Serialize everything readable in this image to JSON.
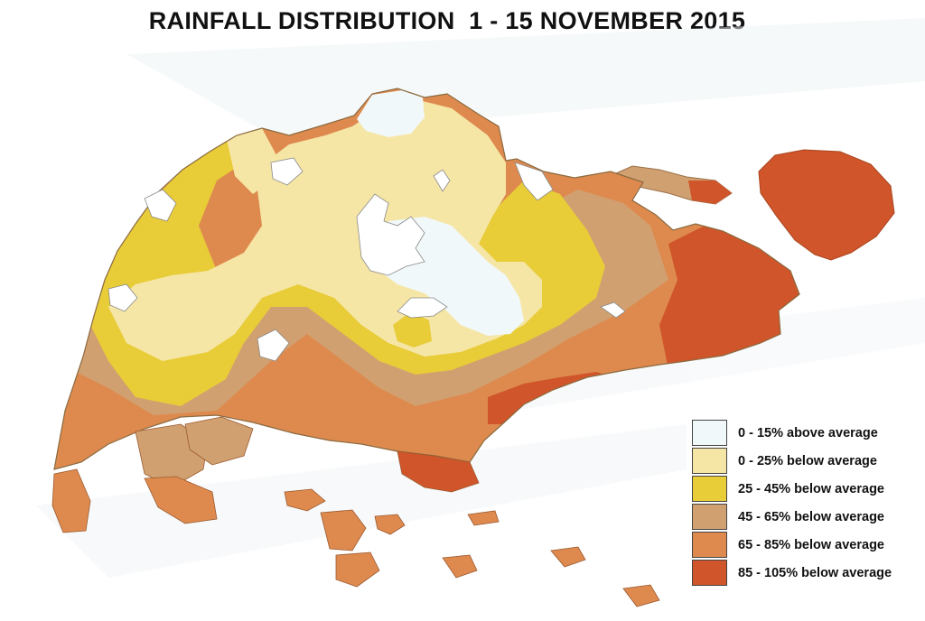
{
  "title": "RAINFALL DISTRIBUTION  1 - 15 NOVEMBER 2015",
  "legend": [
    {
      "label": "0 - 15% above average",
      "color": "#f1f8f9"
    },
    {
      "label": "0 - 25% below average",
      "color": "#f5e6a6"
    },
    {
      "label": "25 - 45% below average",
      "color": "#e8cc38"
    },
    {
      "label": "45 - 65% below average",
      "color": "#d1a070"
    },
    {
      "label": "65 - 85% below average",
      "color": "#de8a4e"
    },
    {
      "label": "85 - 105% below average",
      "color": "#d0552a"
    }
  ]
}
